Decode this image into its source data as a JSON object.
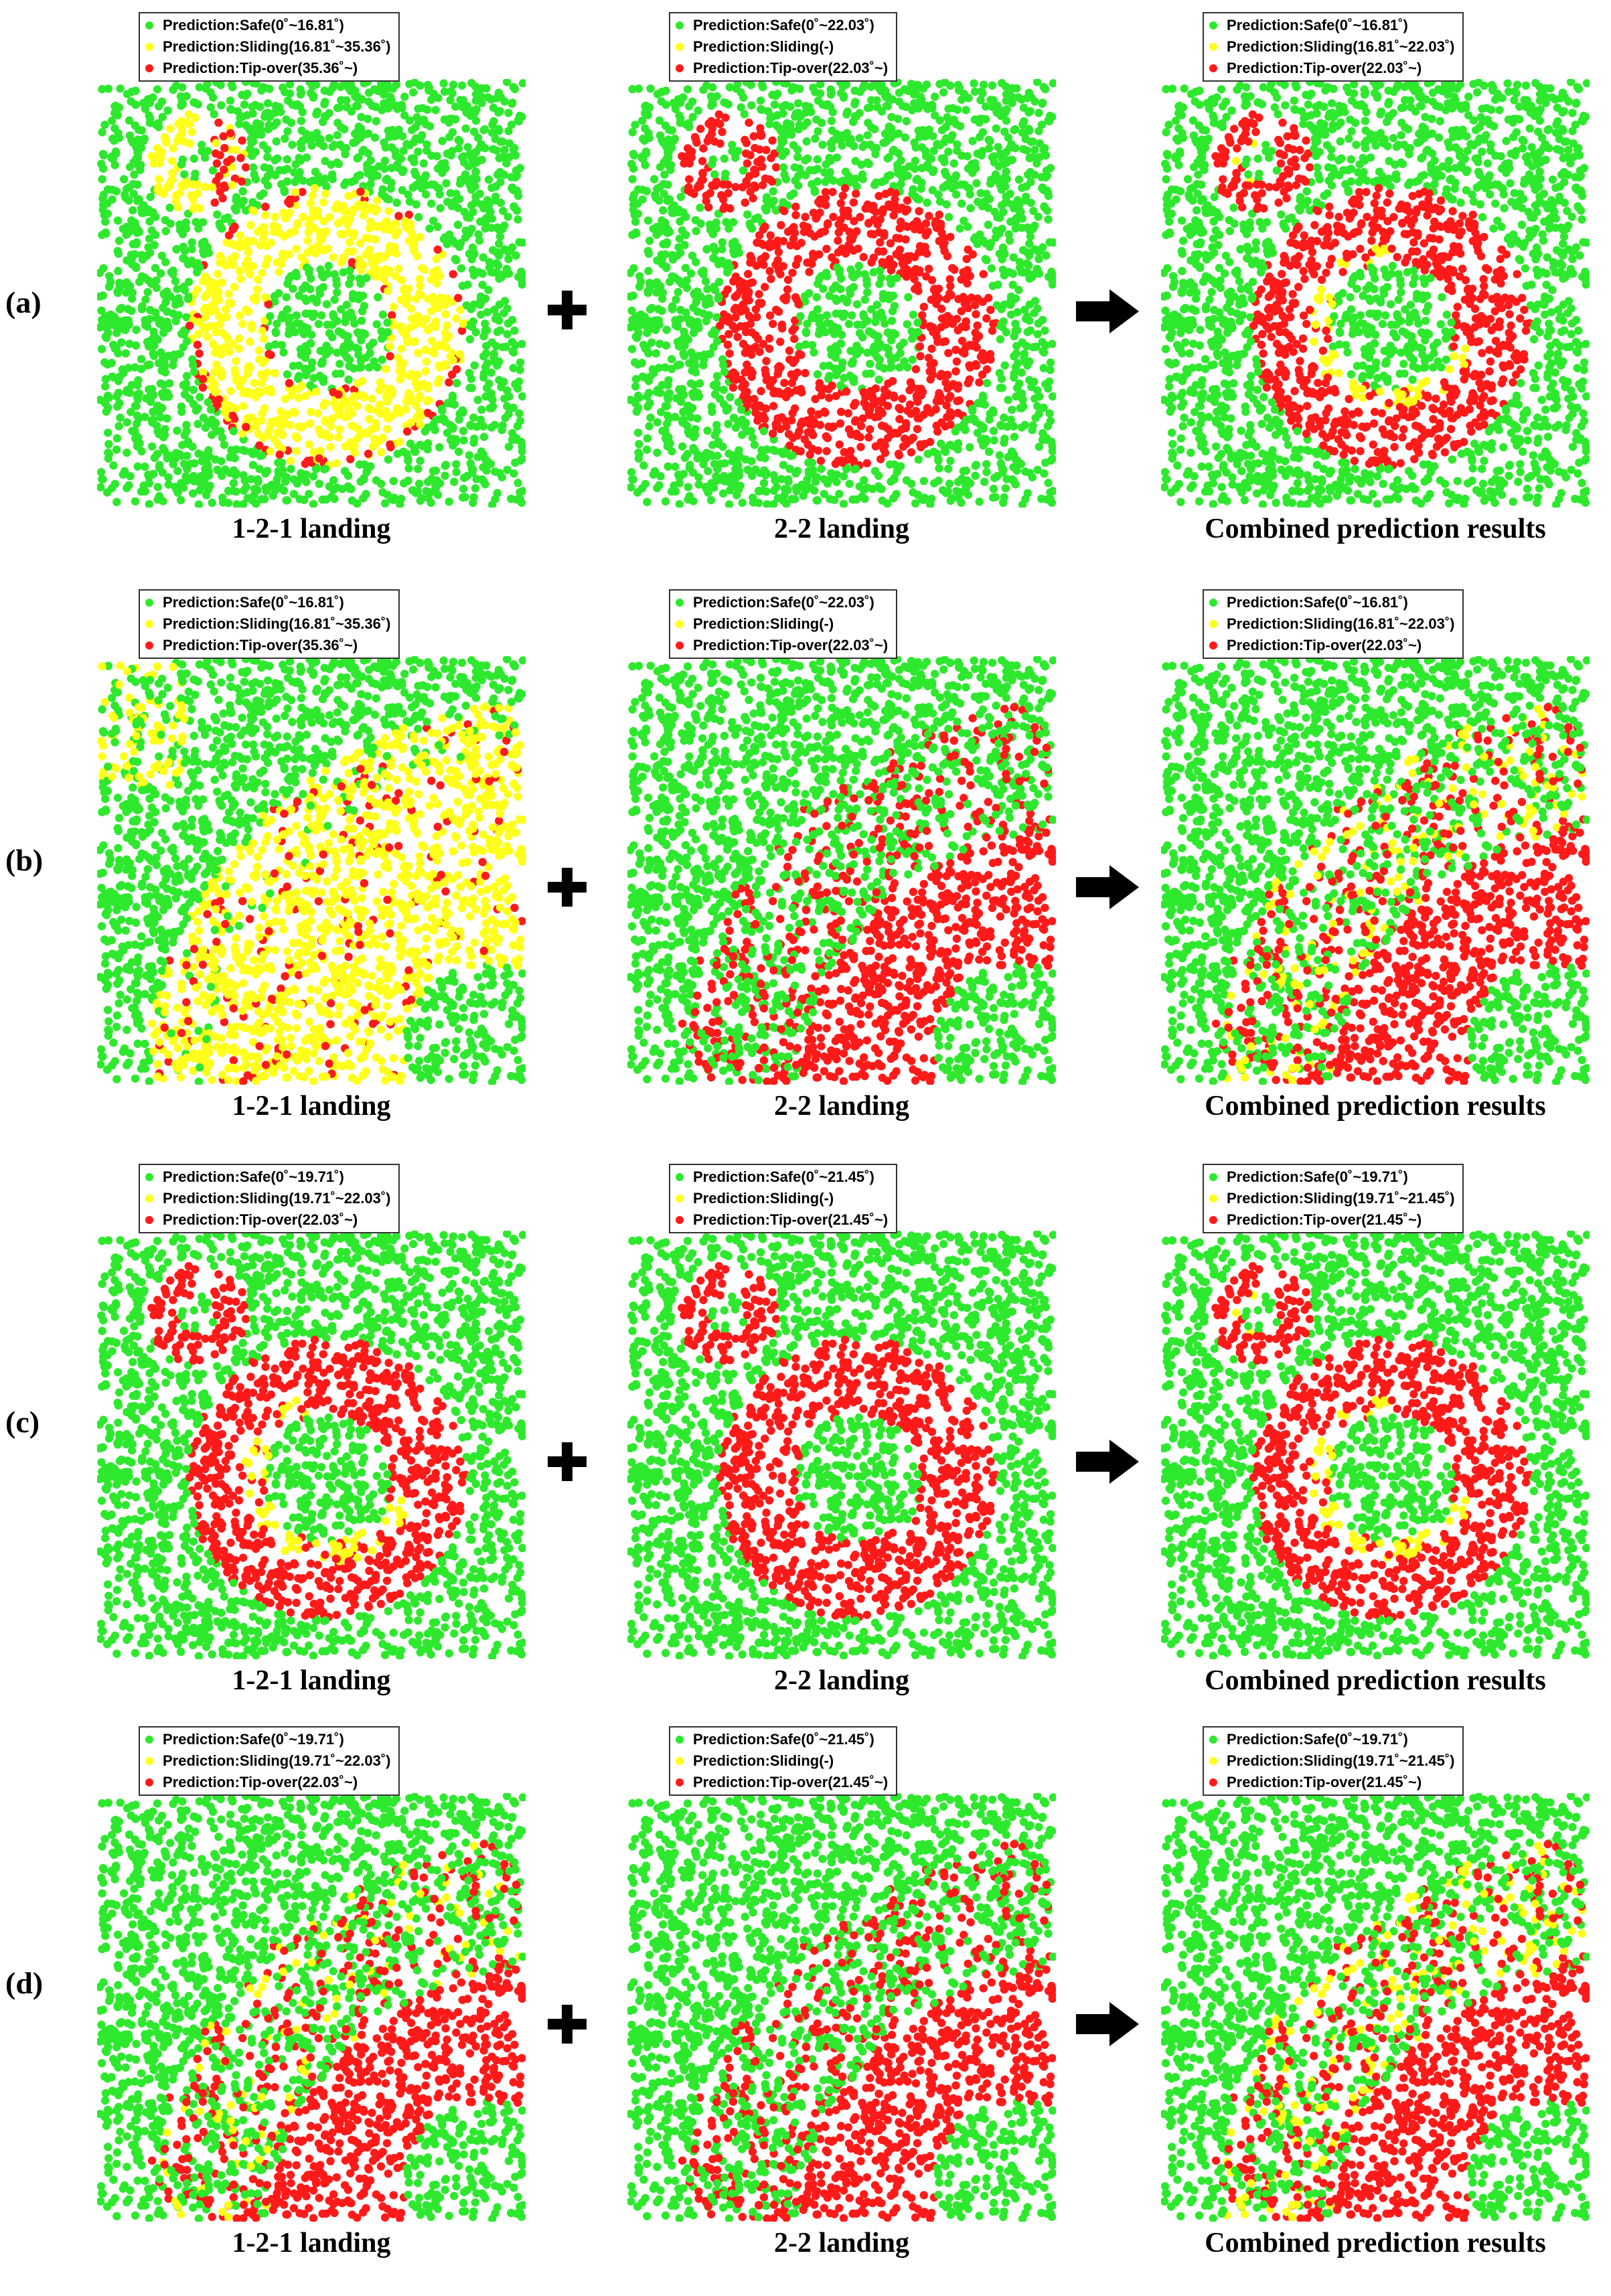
{
  "colors": {
    "safe": "#2ee82e",
    "sliding": "#ffff1a",
    "tipover": "#ff1a1a",
    "operator": "#000000"
  },
  "operators": {
    "plus": "plus-sign",
    "arrow": "right-arrow"
  },
  "rows": [
    {
      "label": "(a)",
      "scene": "rings",
      "panels": [
        {
          "caption": "1-2-1 landing",
          "mode": "121a",
          "legend": [
            "Prediction:Safe(0˚~16.81˚)",
            "Prediction:Sliding(16.81˚~35.36˚)",
            "Prediction:Tip-over(35.36˚~)"
          ]
        },
        {
          "caption": "2-2 landing",
          "mode": "22",
          "legend": [
            "Prediction:Safe(0˚~22.03˚)",
            "Prediction:Sliding(-)",
            "Prediction:Tip-over(22.03˚~)"
          ]
        },
        {
          "caption": "Combined prediction results",
          "mode": "comb",
          "legend": [
            "Prediction:Safe(0˚~16.81˚)",
            "Prediction:Sliding(16.81˚~22.03˚)",
            "Prediction:Tip-over(22.03˚~)"
          ]
        }
      ]
    },
    {
      "label": "(b)",
      "scene": "terrain",
      "panels": [
        {
          "caption": "1-2-1 landing",
          "mode": "121a",
          "legend": [
            "Prediction:Safe(0˚~16.81˚)",
            "Prediction:Sliding(16.81˚~35.36˚)",
            "Prediction:Tip-over(35.36˚~)"
          ]
        },
        {
          "caption": "2-2 landing",
          "mode": "22",
          "legend": [
            "Prediction:Safe(0˚~22.03˚)",
            "Prediction:Sliding(-)",
            "Prediction:Tip-over(22.03˚~)"
          ]
        },
        {
          "caption": "Combined prediction results",
          "mode": "comb",
          "legend": [
            "Prediction:Safe(0˚~16.81˚)",
            "Prediction:Sliding(16.81˚~22.03˚)",
            "Prediction:Tip-over(22.03˚~)"
          ]
        }
      ]
    },
    {
      "label": "(c)",
      "scene": "rings",
      "panels": [
        {
          "caption": "1-2-1 landing",
          "mode": "121c",
          "legend": [
            "Prediction:Safe(0˚~19.71˚)",
            "Prediction:Sliding(19.71˚~22.03˚)",
            "Prediction:Tip-over(22.03˚~)"
          ]
        },
        {
          "caption": "2-2 landing",
          "mode": "22",
          "legend": [
            "Prediction:Safe(0˚~21.45˚)",
            "Prediction:Sliding(-)",
            "Prediction:Tip-over(21.45˚~)"
          ]
        },
        {
          "caption": "Combined prediction results",
          "mode": "comb",
          "legend": [
            "Prediction:Safe(0˚~19.71˚)",
            "Prediction:Sliding(19.71˚~21.45˚)",
            "Prediction:Tip-over(21.45˚~)"
          ]
        }
      ]
    },
    {
      "label": "(d)",
      "scene": "terrain",
      "panels": [
        {
          "caption": "1-2-1 landing",
          "mode": "121c",
          "legend": [
            "Prediction:Safe(0˚~19.71˚)",
            "Prediction:Sliding(19.71˚~22.03˚)",
            "Prediction:Tip-over(22.03˚~)"
          ]
        },
        {
          "caption": "2-2 landing",
          "mode": "22",
          "legend": [
            "Prediction:Safe(0˚~21.45˚)",
            "Prediction:Sliding(-)",
            "Prediction:Tip-over(21.45˚~)"
          ]
        },
        {
          "caption": "Combined prediction results",
          "mode": "comb",
          "legend": [
            "Prediction:Safe(0˚~19.71˚)",
            "Prediction:Sliding(19.71˚~21.45˚)",
            "Prediction:Tip-over(21.45˚~)"
          ]
        }
      ]
    }
  ],
  "chart_data": {
    "type": "scatter",
    "description_source": "4 rows x 3 scatter maps of landing-stability predictions; point classes Safe / Sliding / Tip-over",
    "series": [
      {
        "name": "Prediction:Safe",
        "color": "#2ee82e"
      },
      {
        "name": "Prediction:Sliding",
        "color": "#ffff1a"
      },
      {
        "name": "Prediction:Tip-over",
        "color": "#ff1a1a"
      }
    ],
    "legend_placement": "top",
    "grid": false
  }
}
